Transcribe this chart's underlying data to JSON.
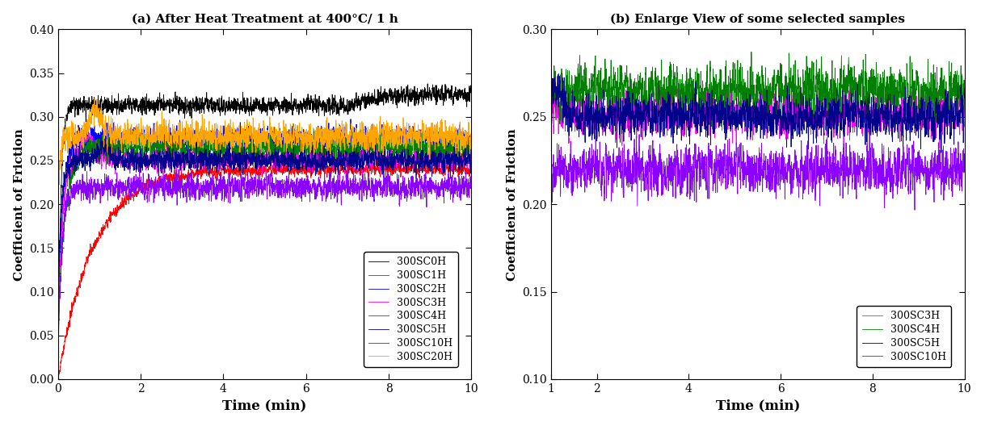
{
  "title_a": "(a) After Heat Treatment at 400°C/ 1 h",
  "title_b": "(b) Enlarge View of some selected samples",
  "xlabel": "Time (min)",
  "ylabel": "Coefficient of Friction",
  "xlim_a": [
    0,
    10
  ],
  "ylim_a": [
    0.0,
    0.4
  ],
  "xlim_b": [
    1,
    10
  ],
  "ylim_b": [
    0.1,
    0.3
  ],
  "yticks_a": [
    0.0,
    0.05,
    0.1,
    0.15,
    0.2,
    0.25,
    0.3,
    0.35,
    0.4
  ],
  "yticks_b": [
    0.1,
    0.15,
    0.2,
    0.25,
    0.3
  ],
  "xticks_a": [
    0,
    2,
    4,
    6,
    8,
    10
  ],
  "xticks_b": [
    1,
    2,
    4,
    6,
    8,
    10
  ],
  "colors": {
    "300SC0H": "#000000",
    "300SC1H": "#ff0000",
    "300SC2H": "#0000ff",
    "300SC3H": "#ff00ff",
    "300SC4H": "#008000",
    "300SC5H": "#00008b",
    "300SC10H": "#8b00ff",
    "300SC20H": "#ffa500"
  },
  "figsize": [
    12.19,
    5.28
  ],
  "dpi": 100
}
